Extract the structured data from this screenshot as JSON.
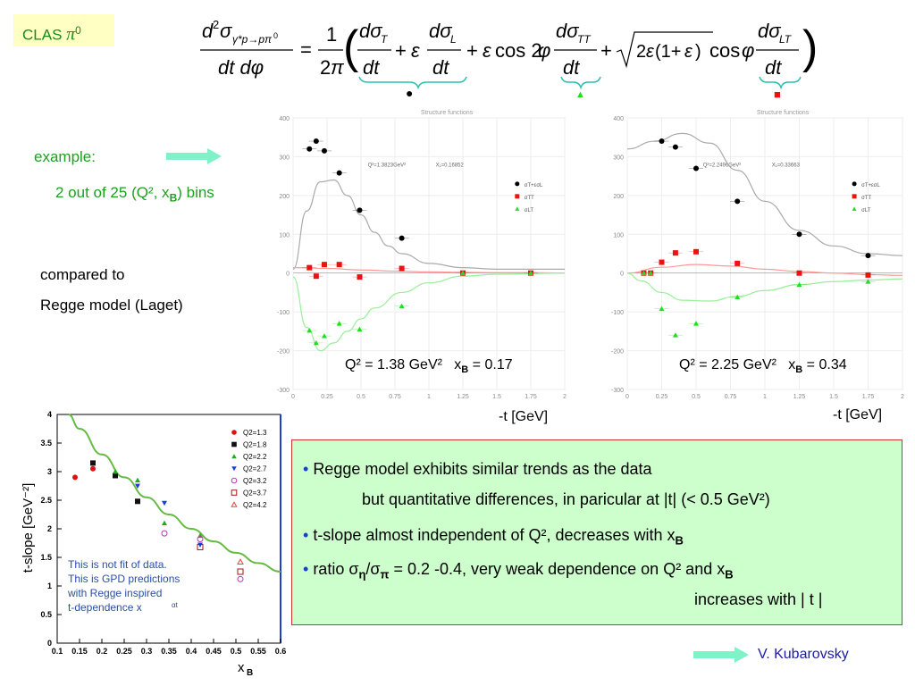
{
  "tag": {
    "text": "CLAS ",
    "symbol": "π",
    "sup": "0"
  },
  "formula_markers": {
    "dot": "●",
    "triangle": "▲",
    "square": "■"
  },
  "example": {
    "label": "example:",
    "bins": "2 out of 25 (Q², x",
    "bins_sub": "B",
    "bins_end": ") bins"
  },
  "compared": {
    "line1": "compared to",
    "line2": "Regge model (Laget)"
  },
  "panels": [
    {
      "title": "Structure functions",
      "label_q": "Q² = 1.38 GeV²",
      "label_x": "x",
      "label_x_sub": "B",
      "label_x_val": " = 0.17",
      "inner_q": "Q²=1.3823GeV²",
      "inner_x": "X₁=0.16852",
      "xaxis": "-t [GeV]"
    },
    {
      "title": "Structure functions",
      "label_q": "Q² = 2.25 GeV²",
      "label_x": "x",
      "label_x_sub": "B",
      "label_x_val": " = 0.34",
      "inner_q": "Q²=2.2496GeV²",
      "inner_x": "X₁=0.33663",
      "xaxis": "-t [GeV]"
    }
  ],
  "legend_sf": [
    "σT+εσL",
    "σTT",
    "σLT"
  ],
  "slope": {
    "ylabel": "t-slope [GeV⁻²]",
    "xlabel": "x",
    "xlabel_sub": "B",
    "legend": [
      "Q2=1.3",
      "Q2=1.8",
      "Q2=2.2",
      "Q2=2.7",
      "Q2=3.2",
      "Q2=3.7",
      "Q2=4.2"
    ],
    "note": [
      "This is not fit of data.",
      "This is GPD predictions",
      "with Regge inspired",
      "t-dependence x"
    ],
    "note_sup": "αt"
  },
  "bullets": {
    "b1": "Regge model exhibits similar trends as the data",
    "b1b": "but quantitative differences, in paricular at  |t|  (< 0.5 GeV²)",
    "b2": "t-slope almost independent of Q², decreases with x",
    "b2_sub": "B",
    "b3": "ratio σ",
    "b3_sub1": "η",
    "b3_mid": "/σ",
    "b3_sub2": "π",
    "b3_end": " = 0.2 -0.4,  very weak dependence on Q² and x",
    "b3_sub3": "B",
    "b3b": "increases with | t |"
  },
  "byline": "V. Kubarovsky",
  "chart_data": [
    {
      "type": "scatter",
      "title": "Structure functions",
      "xlabel": "-t [GeV]",
      "ylabel": "",
      "xlim": [
        0,
        2
      ],
      "ylim": [
        -300,
        400
      ],
      "xticks": [
        "0",
        "0.25",
        "0.5",
        "0.75",
        "1",
        "1.25",
        "1.5",
        "1.75",
        "2"
      ],
      "yticks": [
        "400",
        "300",
        "200",
        "100",
        "0",
        "-100",
        "-200",
        "-300"
      ],
      "series": [
        {
          "name": "σT+εσL",
          "color": "#000000",
          "marker": "circle",
          "x": [
            0.12,
            0.17,
            0.23,
            0.34,
            0.49,
            0.8
          ],
          "y": [
            320,
            340,
            315,
            258,
            162,
            90
          ]
        },
        {
          "name": "σTT",
          "color": "#ee1111",
          "marker": "square",
          "x": [
            0.12,
            0.17,
            0.23,
            0.34,
            0.49,
            0.8,
            1.25,
            1.75
          ],
          "y": [
            14,
            -8,
            22,
            22,
            -10,
            12,
            0,
            0
          ]
        },
        {
          "name": "σLT",
          "color": "#22dd22",
          "marker": "triangle",
          "x": [
            0.12,
            0.17,
            0.23,
            0.34,
            0.49,
            0.8,
            1.25,
            1.75
          ],
          "y": [
            -148,
            -180,
            -162,
            -130,
            -145,
            -85,
            0,
            0
          ]
        }
      ],
      "curves": [
        {
          "color": "#aaaaaa",
          "x": [
            0,
            0.1,
            0.2,
            0.3,
            0.4,
            0.5,
            0.6,
            0.7,
            0.8,
            1.0,
            1.25,
            1.5,
            1.75,
            2.0
          ],
          "y": [
            10,
            160,
            235,
            240,
            200,
            150,
            105,
            70,
            50,
            25,
            14,
            10,
            10,
            10
          ]
        },
        {
          "color": "#ff9999",
          "x": [
            0,
            0.25,
            0.5,
            0.75,
            1.0,
            1.25,
            1.5,
            1.75,
            2.0
          ],
          "y": [
            14,
            12,
            8,
            5,
            3,
            2,
            1,
            1,
            0
          ]
        },
        {
          "color": "#99ee99",
          "x": [
            0,
            0.1,
            0.2,
            0.3,
            0.4,
            0.5,
            0.6,
            0.8,
            1.0,
            1.25,
            1.5,
            2.0
          ],
          "y": [
            -10,
            -140,
            -200,
            -180,
            -150,
            -118,
            -90,
            -50,
            -25,
            -8,
            -3,
            0
          ]
        }
      ]
    },
    {
      "type": "scatter",
      "title": "Structure functions",
      "xlabel": "-t [GeV]",
      "ylabel": "",
      "xlim": [
        0,
        2
      ],
      "ylim": [
        -300,
        400
      ],
      "xticks": [
        "0",
        "0.25",
        "0.5",
        "0.75",
        "1",
        "1.25",
        "1.5",
        "1.75",
        "2"
      ],
      "yticks": [
        "400",
        "300",
        "200",
        "100",
        "0",
        "-100",
        "-200",
        "-300"
      ],
      "series": [
        {
          "name": "σT+εσL",
          "color": "#000000",
          "marker": "circle",
          "x": [
            0.25,
            0.35,
            0.5,
            0.8,
            1.25,
            1.75
          ],
          "y": [
            340,
            325,
            270,
            185,
            100,
            45
          ]
        },
        {
          "name": "σTT",
          "color": "#ee1111",
          "marker": "square",
          "x": [
            0.12,
            0.17,
            0.25,
            0.35,
            0.5,
            0.8,
            1.25,
            1.75
          ],
          "y": [
            0,
            0,
            28,
            52,
            55,
            25,
            0,
            -5
          ]
        },
        {
          "name": "σLT",
          "color": "#22dd22",
          "marker": "triangle",
          "x": [
            0.12,
            0.17,
            0.25,
            0.35,
            0.5,
            0.8,
            1.25,
            1.75
          ],
          "y": [
            0,
            0,
            -92,
            -160,
            -130,
            -62,
            -30,
            -22
          ]
        }
      ],
      "curves": [
        {
          "color": "#aaaaaa",
          "x": [
            0,
            0.2,
            0.4,
            0.6,
            0.8,
            1.0,
            1.25,
            1.5,
            1.75,
            2.0
          ],
          "y": [
            320,
            340,
            360,
            335,
            265,
            185,
            110,
            70,
            50,
            45
          ]
        },
        {
          "color": "#ff9999",
          "x": [
            0,
            0.25,
            0.5,
            0.75,
            1.0,
            1.25,
            1.5,
            1.75,
            2.0
          ],
          "y": [
            0,
            15,
            22,
            18,
            10,
            4,
            0,
            -4,
            -6
          ]
        },
        {
          "color": "#99ee99",
          "x": [
            0,
            0.1,
            0.25,
            0.4,
            0.6,
            0.8,
            1.0,
            1.25,
            1.5,
            1.75,
            2.0
          ],
          "y": [
            0,
            -20,
            -50,
            -70,
            -72,
            -60,
            -45,
            -30,
            -22,
            -18,
            -15
          ]
        }
      ]
    },
    {
      "type": "scatter",
      "title": "",
      "xlabel": "xB",
      "ylabel": "t-slope [GeV-2]",
      "xlim": [
        0.1,
        0.6
      ],
      "ylim": [
        0,
        4
      ],
      "xticks": [
        "0.1",
        "0.15",
        "0.2",
        "0.25",
        "0.3",
        "0.35",
        "0.4",
        "0.45",
        "0.5",
        "0.55",
        "0.6"
      ],
      "yticks": [
        "4",
        "3.5",
        "3",
        "2.5",
        "2",
        "1.5",
        "1",
        "0.5",
        "0"
      ],
      "series": [
        {
          "name": "Q2=1.3",
          "color": "#dd1111",
          "marker": "circle",
          "x": [
            0.14,
            0.18
          ],
          "y": [
            2.9,
            3.05
          ]
        },
        {
          "name": "Q2=1.8",
          "color": "#111111",
          "marker": "square",
          "x": [
            0.18,
            0.23,
            0.28
          ],
          "y": [
            3.15,
            2.93,
            2.48
          ]
        },
        {
          "name": "Q2=2.2",
          "color": "#22aa22",
          "marker": "triangle",
          "x": [
            0.23,
            0.28,
            0.34,
            0.42
          ],
          "y": [
            3.0,
            2.85,
            2.1,
            1.88
          ]
        },
        {
          "name": "Q2=2.7",
          "color": "#1a3fd0",
          "marker": "triangle-down",
          "x": [
            0.28,
            0.34,
            0.42
          ],
          "y": [
            2.75,
            2.45,
            1.72
          ]
        },
        {
          "name": "Q2=3.2",
          "color": "#bb33bb",
          "marker": "circle-open",
          "x": [
            0.34,
            0.42,
            0.51
          ],
          "y": [
            1.92,
            1.82,
            1.12
          ]
        },
        {
          "name": "Q2=3.7",
          "color": "#aa1111",
          "marker": "square-open",
          "x": [
            0.42,
            0.51
          ],
          "y": [
            1.68,
            1.25
          ]
        },
        {
          "name": "Q2=4.2",
          "color": "#ee4444",
          "marker": "triangle-open",
          "x": [
            0.51
          ],
          "y": [
            1.42
          ]
        }
      ],
      "curves": [
        {
          "color": "#66bb44",
          "x": [
            0.125,
            0.15,
            0.2,
            0.25,
            0.3,
            0.35,
            0.4,
            0.45,
            0.5,
            0.55,
            0.6
          ],
          "y": [
            4.0,
            3.75,
            3.3,
            2.9,
            2.55,
            2.25,
            2.0,
            1.78,
            1.58,
            1.4,
            1.25
          ]
        }
      ]
    }
  ]
}
